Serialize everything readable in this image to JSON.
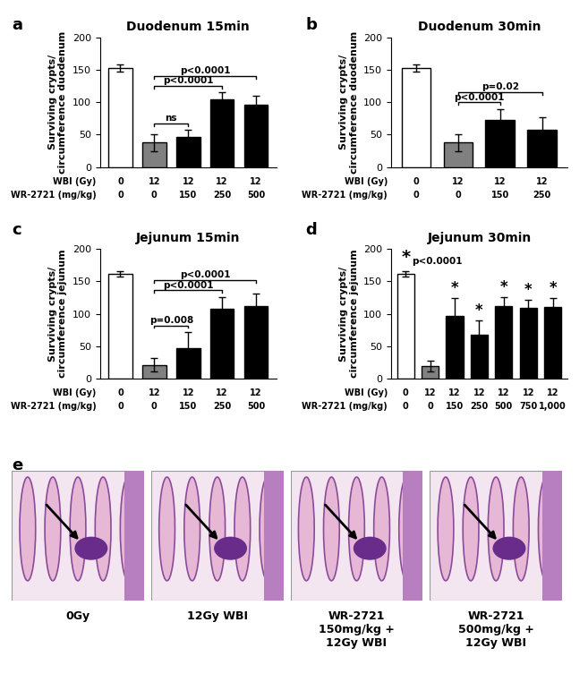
{
  "chart_data": [
    {
      "type": "bar",
      "panel": "a",
      "title": "Duodenum 15min",
      "y_label": "Surviving crypts/\ncircumference duodenum",
      "x_rows": [
        {
          "label": "WBI (Gy)",
          "values": [
            "0",
            "12",
            "12",
            "12",
            "12"
          ]
        },
        {
          "label": "WR-2721 (mg/kg)",
          "values": [
            "0",
            "0",
            "150",
            "250",
            "500"
          ]
        }
      ],
      "values": [
        153,
        38,
        47,
        104,
        96
      ],
      "errors": [
        5,
        13,
        10,
        11,
        14
      ],
      "colors": [
        "#ffffff",
        "#808080",
        "#000000",
        "#000000",
        "#000000"
      ],
      "ylim": [
        0,
        200
      ],
      "yticks": [
        0,
        50,
        100,
        150,
        200
      ],
      "comparisons": [
        {
          "from": 1,
          "to": 2,
          "label": "ns"
        },
        {
          "from": 1,
          "to": 3,
          "label": "p<0.0001"
        },
        {
          "from": 1,
          "to": 4,
          "label": "p<0.0001"
        }
      ]
    },
    {
      "type": "bar",
      "panel": "b",
      "title": "Duodenum 30min",
      "y_label": "Surviving crypts/\ncircumference duodenum",
      "x_rows": [
        {
          "label": "WBI (Gy)",
          "values": [
            "0",
            "12",
            "12",
            "12"
          ]
        },
        {
          "label": "WR-2721 (mg/kg)",
          "values": [
            "0",
            "0",
            "150",
            "250"
          ]
        }
      ],
      "values": [
        153,
        38,
        73,
        57
      ],
      "errors": [
        5,
        13,
        17,
        20
      ],
      "colors": [
        "#ffffff",
        "#808080",
        "#000000",
        "#000000"
      ],
      "ylim": [
        0,
        200
      ],
      "yticks": [
        0,
        50,
        100,
        150,
        200
      ],
      "comparisons": [
        {
          "from": 1,
          "to": 2,
          "label": "p<0.0001"
        },
        {
          "from": 1,
          "to": 3,
          "label": "p=0.02"
        }
      ]
    },
    {
      "type": "bar",
      "panel": "c",
      "title": "Jejunum 15min",
      "y_label": "Surviving crypts/\ncircumference jejunum",
      "x_rows": [
        {
          "label": "WBI (Gy)",
          "values": [
            "0",
            "12",
            "12",
            "12",
            "12"
          ]
        },
        {
          "label": "WR-2721 (mg/kg)",
          "values": [
            "0",
            "0",
            "150",
            "250",
            "500"
          ]
        }
      ],
      "values": [
        162,
        21,
        47,
        108,
        112
      ],
      "errors": [
        4,
        10,
        25,
        18,
        19
      ],
      "colors": [
        "#ffffff",
        "#808080",
        "#000000",
        "#000000",
        "#000000"
      ],
      "ylim": [
        0,
        200
      ],
      "yticks": [
        0,
        50,
        100,
        150,
        200
      ],
      "comparisons": [
        {
          "from": 1,
          "to": 2,
          "label": "p=0.008"
        },
        {
          "from": 1,
          "to": 3,
          "label": "p<0.0001"
        },
        {
          "from": 1,
          "to": 4,
          "label": "p<0.0001"
        }
      ]
    },
    {
      "type": "bar",
      "panel": "d",
      "title": "Jejunum 30min",
      "y_label": "Surviving crypts/\ncircumference jejunum",
      "x_rows": [
        {
          "label": "WBI (Gy)",
          "values": [
            "0",
            "12",
            "12",
            "12",
            "12",
            "12",
            "12"
          ]
        },
        {
          "label": "WR-2721 (mg/kg)",
          "values": [
            "0",
            "0",
            "150",
            "250",
            "500",
            "750",
            "1,000"
          ]
        }
      ],
      "values": [
        162,
        19,
        96,
        67,
        112,
        109,
        111
      ],
      "errors": [
        4,
        8,
        28,
        22,
        13,
        12,
        13
      ],
      "colors": [
        "#ffffff",
        "#808080",
        "#000000",
        "#000000",
        "#000000",
        "#000000",
        "#000000"
      ],
      "ylim": [
        0,
        200
      ],
      "yticks": [
        0,
        50,
        100,
        150,
        200
      ],
      "significance": {
        "symbol": "*",
        "bars": [
          2,
          3,
          4,
          5,
          6
        ],
        "note": "p<0.0001"
      }
    }
  ],
  "images": {
    "panel": "e",
    "captions": [
      "0Gy",
      "12Gy WBI",
      "WR-2721\n150mg/kg +\n12Gy WBI",
      "WR-2721\n500mg/kg +\n12Gy WBI"
    ]
  }
}
